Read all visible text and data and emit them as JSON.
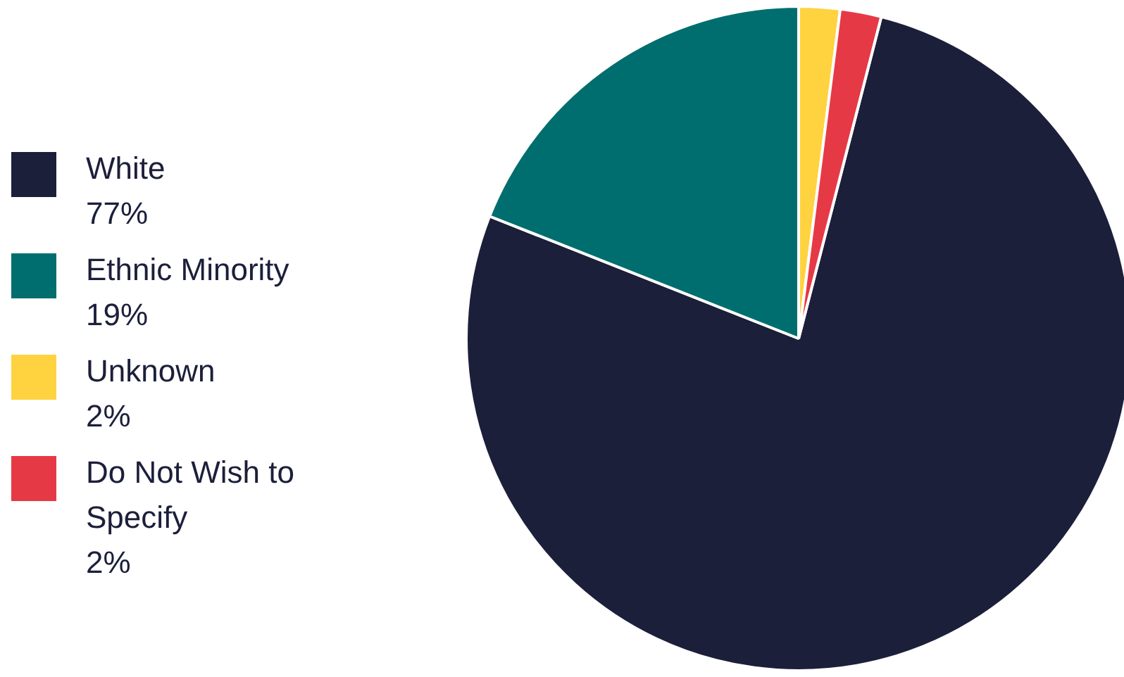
{
  "chart_data": {
    "type": "pie",
    "categories": [
      "White",
      "Ethnic Minority",
      "Unknown",
      "Do Not Wish to Specify"
    ],
    "values": [
      77,
      19,
      2,
      2
    ],
    "colors": [
      "#1b1f3a",
      "#006e6e",
      "#ffd340",
      "#e63946"
    ],
    "value_labels": [
      "77%",
      "19%",
      "2%",
      "2%"
    ],
    "legend": "left"
  }
}
